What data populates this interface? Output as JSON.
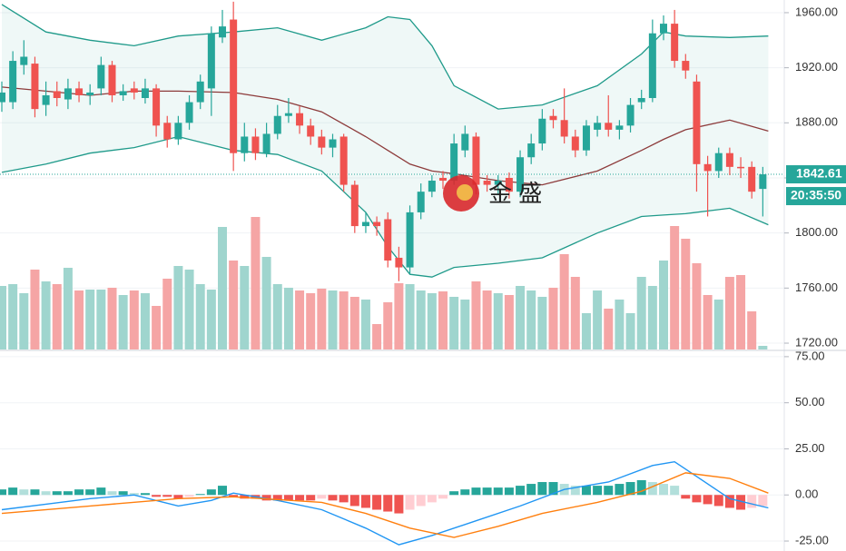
{
  "chart_data": [
    {
      "type": "candlestick",
      "ylim": [
        1715.4,
        1969.2
      ],
      "yticks": [
        {
          "value": 1960,
          "label": "1960.00"
        },
        {
          "value": 1920,
          "label": "1920.00"
        },
        {
          "value": 1880,
          "label": "1880.00"
        },
        {
          "value": 1840,
          "label": "1840.00"
        },
        {
          "value": 1800,
          "label": "1800.00"
        },
        {
          "value": 1760,
          "label": "1760.00"
        },
        {
          "value": 1720,
          "label": "1720.00"
        }
      ],
      "grid": true,
      "up_color": "#26a69a",
      "down_color": "#ef5350",
      "open": [
        1895,
        1895,
        1922,
        1923,
        1893,
        1903,
        1897,
        1905,
        1900,
        1905,
        1922,
        1900,
        1905,
        1898,
        1905,
        1880,
        1868,
        1880,
        1895,
        1905,
        1942,
        1955,
        1858,
        1870,
        1858,
        1872,
        1885,
        1887,
        1878,
        1870,
        1862,
        1870,
        1835,
        1805,
        1808,
        1810,
        1782,
        1775,
        1815,
        1830,
        1840,
        1838,
        1860,
        1870,
        1838,
        1835,
        1840,
        1830,
        1855,
        1865,
        1885,
        1882,
        1870,
        1860,
        1875,
        1880,
        1875,
        1878,
        1895,
        1898,
        1945,
        1952,
        1925,
        1910,
        1850,
        1845,
        1858,
        1848,
        1848,
        1832
      ],
      "high": [
        1910,
        1932,
        1940,
        1928,
        1910,
        1910,
        1912,
        1910,
        1908,
        1928,
        1925,
        1908,
        1910,
        1912,
        1908,
        1885,
        1885,
        1900,
        1915,
        1950,
        1962,
        1968,
        1880,
        1876,
        1880,
        1893,
        1898,
        1892,
        1883,
        1875,
        1872,
        1872,
        1838,
        1815,
        1812,
        1815,
        1790,
        1820,
        1836,
        1842,
        1845,
        1872,
        1878,
        1873,
        1842,
        1842,
        1844,
        1860,
        1872,
        1890,
        1890,
        1905,
        1875,
        1882,
        1885,
        1900,
        1882,
        1898,
        1904,
        1955,
        1958,
        1962,
        1930,
        1915,
        1856,
        1862,
        1862,
        1855,
        1852,
        1848
      ],
      "low": [
        1888,
        1890,
        1915,
        1884,
        1885,
        1892,
        1890,
        1895,
        1893,
        1900,
        1895,
        1896,
        1897,
        1894,
        1870,
        1862,
        1864,
        1875,
        1890,
        1885,
        1938,
        1845,
        1852,
        1853,
        1855,
        1868,
        1880,
        1872,
        1864,
        1857,
        1855,
        1830,
        1800,
        1800,
        1798,
        1775,
        1765,
        1770,
        1810,
        1826,
        1832,
        1835,
        1855,
        1828,
        1830,
        1828,
        1825,
        1826,
        1850,
        1860,
        1876,
        1865,
        1855,
        1856,
        1870,
        1870,
        1868,
        1873,
        1890,
        1895,
        1940,
        1920,
        1912,
        1830,
        1812,
        1840,
        1842,
        1840,
        1825,
        1812
      ],
      "close": [
        1902,
        1925,
        1928,
        1890,
        1900,
        1898,
        1905,
        1900,
        1902,
        1922,
        1900,
        1903,
        1902,
        1905,
        1878,
        1868,
        1880,
        1895,
        1910,
        1945,
        1950,
        1858,
        1870,
        1858,
        1872,
        1885,
        1887,
        1878,
        1870,
        1862,
        1868,
        1835,
        1805,
        1808,
        1805,
        1780,
        1775,
        1815,
        1830,
        1838,
        1838,
        1865,
        1872,
        1835,
        1835,
        1838,
        1830,
        1855,
        1865,
        1883,
        1882,
        1870,
        1860,
        1878,
        1880,
        1875,
        1878,
        1893,
        1898,
        1945,
        1952,
        1925,
        1918,
        1850,
        1845,
        1858,
        1848,
        1847,
        1830,
        1842.61
      ],
      "volume": [
        70,
        72,
        62,
        88,
        75,
        72,
        90,
        65,
        66,
        66,
        68,
        60,
        65,
        62,
        48,
        78,
        92,
        88,
        72,
        66,
        135,
        98,
        92,
        146,
        102,
        72,
        68,
        65,
        62,
        67,
        65,
        64,
        58,
        55,
        28,
        52,
        73,
        72,
        65,
        62,
        64,
        58,
        55,
        75,
        65,
        62,
        60,
        70,
        65,
        58,
        68,
        105,
        80,
        40,
        65,
        45,
        55,
        40,
        80,
        70,
        98,
        136,
        122,
        95,
        60,
        55,
        80,
        82,
        42,
        4
      ],
      "volume_lim": [
        0,
        150
      ],
      "volume_up_color": "#9fd5ce",
      "volume_down_color": "#f5a5a5",
      "bands": {
        "x": [
          0,
          4,
          8,
          12,
          16,
          21,
          25,
          29,
          33,
          35,
          37,
          39,
          41,
          45,
          49,
          54,
          58,
          60,
          62,
          66,
          69.5
        ],
        "upper": [
          1966,
          1946,
          1940,
          1936,
          1943,
          1946,
          1949,
          1940,
          1949,
          1957,
          1955,
          1936,
          1907,
          1890,
          1893,
          1907,
          1930,
          1946,
          1943,
          1942,
          1943
        ],
        "middle": [
          1906,
          1903,
          1900,
          1903,
          1903,
          1902,
          1897,
          1888,
          1870,
          1860,
          1850,
          1845,
          1843,
          1838,
          1835,
          1845,
          1860,
          1868,
          1875,
          1882,
          1874
        ],
        "lower": [
          1844,
          1850,
          1858,
          1862,
          1870,
          1860,
          1857,
          1845,
          1815,
          1790,
          1770,
          1768,
          1775,
          1778,
          1782,
          1800,
          1812,
          1813,
          1814,
          1818,
          1806
        ],
        "band_color": "#1f9a8a",
        "middle_color": "#8d3b3b"
      },
      "last_price": 1842.61,
      "time": "20:35:50",
      "watermark": "金 盛"
    },
    {
      "type": "macd",
      "ylim": [
        -30.4,
        78.4
      ],
      "yticks": [
        {
          "value": 75,
          "label": "75.00"
        },
        {
          "value": 50,
          "label": "50.00"
        },
        {
          "value": 25,
          "label": "25.00"
        },
        {
          "value": 0,
          "label": "0.00"
        },
        {
          "value": -25,
          "label": "-25.00"
        }
      ],
      "grid": true,
      "histogram": [
        3,
        4,
        3,
        3,
        2,
        2,
        2,
        3,
        3,
        4,
        2,
        2,
        1,
        1,
        -1,
        -1,
        -2,
        -1,
        0.5,
        3,
        5,
        -1,
        -2,
        -2,
        -3,
        -3,
        -3,
        -3,
        -3,
        -2,
        -3,
        -4,
        -6,
        -7,
        -8,
        -9,
        -10,
        -8,
        -6,
        -4,
        -2,
        2,
        3,
        4,
        4,
        4,
        4,
        5,
        6,
        7,
        7,
        6,
        5,
        5,
        5,
        5,
        6,
        7,
        8,
        7,
        6,
        5,
        -2,
        -4,
        -5,
        -6,
        -7,
        -8,
        -7,
        -6
      ],
      "hist_colors": {
        "up_rising": "#26a69a",
        "up_falling": "#b2dfdb",
        "down_falling": "#ef5350",
        "down_rising": "#ffcdd2"
      },
      "series": [
        {
          "color": "#2196f3",
          "x": [
            0,
            4,
            8,
            12,
            16,
            19,
            21,
            25,
            29,
            33,
            36,
            39,
            43,
            47,
            51,
            55,
            59,
            61,
            63,
            66,
            69.5
          ],
          "values": [
            -8,
            -5,
            -2,
            0,
            -6,
            -3,
            1,
            -3,
            -8,
            -18,
            -27,
            -22,
            -14,
            -6,
            3,
            7,
            16,
            18,
            10,
            -2,
            -7
          ]
        },
        {
          "color": "#ff7f0e",
          "x": [
            0,
            8,
            16,
            21,
            29,
            33,
            37,
            41,
            45,
            49,
            54,
            58,
            62,
            66,
            69.5
          ],
          "values": [
            -10,
            -6,
            -2,
            -1,
            -4,
            -10,
            -18,
            -23,
            -17,
            -10,
            -4,
            2,
            12,
            9,
            1
          ]
        }
      ]
    }
  ]
}
